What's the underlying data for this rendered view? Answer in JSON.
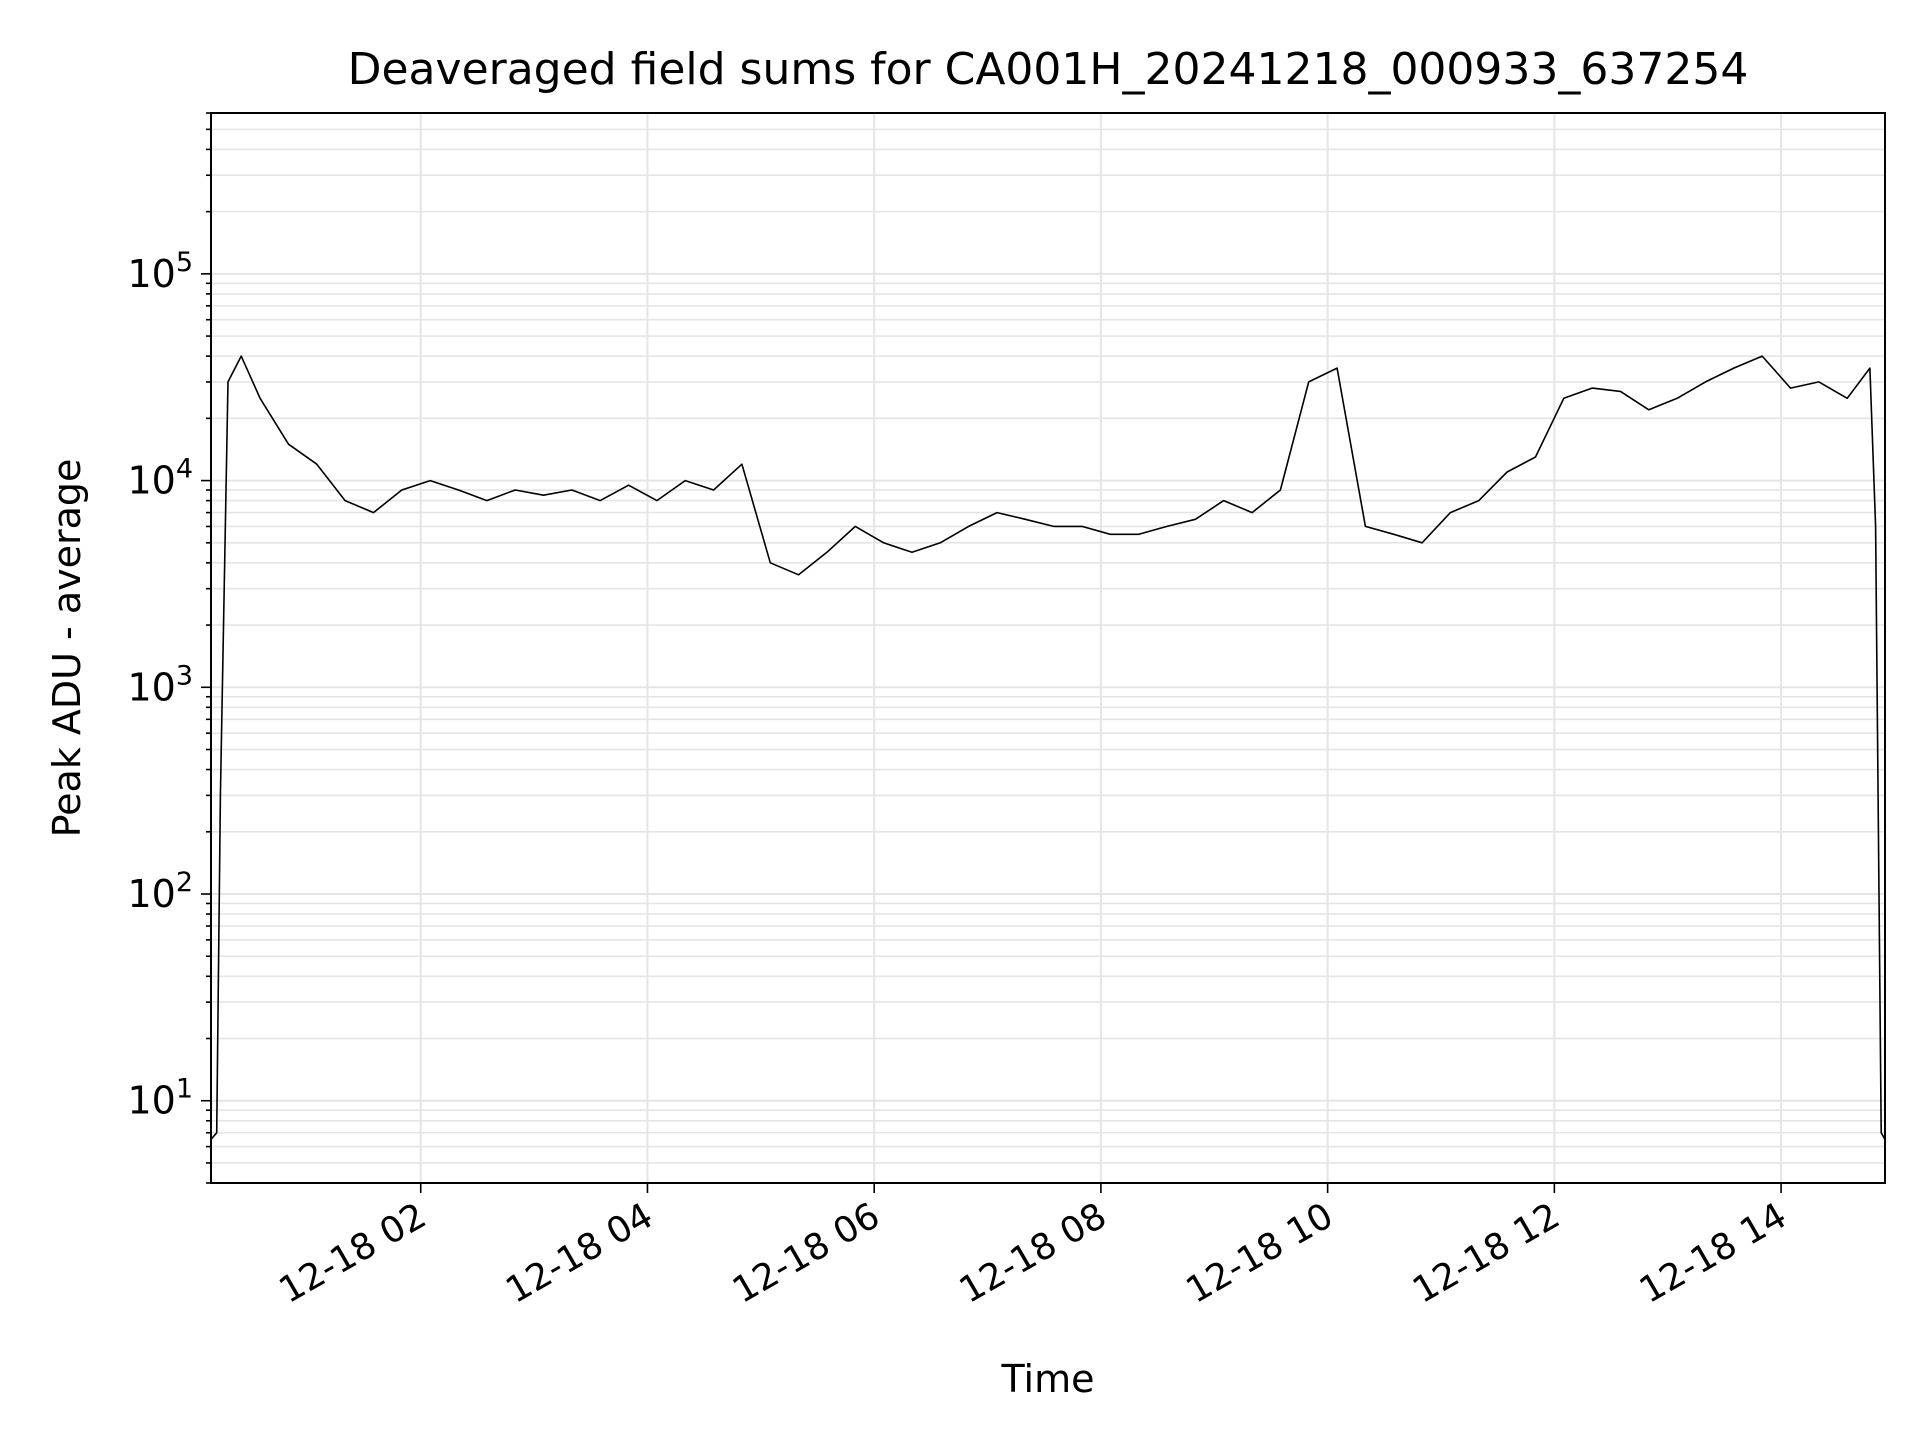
{
  "chart_data": {
    "type": "line",
    "title": "Deaveraged field sums for CA001H_20241218_000933_637254",
    "xlabel": "Time",
    "ylabel": "Peak ADU - average",
    "y_scale": "log",
    "ylim": [
      4,
      600000
    ],
    "xlim": [
      "2024-12-18 00:09",
      "2024-12-18 14:55"
    ],
    "grid": true,
    "line_color": "#000000",
    "grid_color": "#e5e5e5",
    "x_ticks": [
      {
        "label": "12-18 02",
        "t": "2024-12-18 02:00"
      },
      {
        "label": "12-18 04",
        "t": "2024-12-18 04:00"
      },
      {
        "label": "12-18 06",
        "t": "2024-12-18 06:00"
      },
      {
        "label": "12-18 08",
        "t": "2024-12-18 08:00"
      },
      {
        "label": "12-18 10",
        "t": "2024-12-18 10:00"
      },
      {
        "label": "12-18 12",
        "t": "2024-12-18 12:00"
      },
      {
        "label": "12-18 14",
        "t": "2024-12-18 14:00"
      }
    ],
    "y_ticks": [
      {
        "base": "10",
        "exp": "1",
        "value": 10
      },
      {
        "base": "10",
        "exp": "2",
        "value": 100
      },
      {
        "base": "10",
        "exp": "3",
        "value": 1000
      },
      {
        "base": "10",
        "exp": "4",
        "value": 10000
      },
      {
        "base": "10",
        "exp": "5",
        "value": 100000
      }
    ],
    "series": [
      {
        "x": [
          "2024-12-18 00:09",
          "2024-12-18 00:12",
          "2024-12-18 00:14",
          "2024-12-18 00:18",
          "2024-12-18 00:25",
          "2024-12-18 00:35",
          "2024-12-18 00:50",
          "2024-12-18 01:05",
          "2024-12-18 01:20",
          "2024-12-18 01:35",
          "2024-12-18 01:50",
          "2024-12-18 02:05",
          "2024-12-18 02:20",
          "2024-12-18 02:35",
          "2024-12-18 02:50",
          "2024-12-18 03:05",
          "2024-12-18 03:20",
          "2024-12-18 03:35",
          "2024-12-18 03:50",
          "2024-12-18 04:05",
          "2024-12-18 04:20",
          "2024-12-18 04:35",
          "2024-12-18 04:50",
          "2024-12-18 05:05",
          "2024-12-18 05:20",
          "2024-12-18 05:35",
          "2024-12-18 05:50",
          "2024-12-18 06:05",
          "2024-12-18 06:20",
          "2024-12-18 06:35",
          "2024-12-18 06:50",
          "2024-12-18 07:05",
          "2024-12-18 07:20",
          "2024-12-18 07:35",
          "2024-12-18 07:50",
          "2024-12-18 08:05",
          "2024-12-18 08:20",
          "2024-12-18 08:35",
          "2024-12-18 08:50",
          "2024-12-18 09:05",
          "2024-12-18 09:20",
          "2024-12-18 09:35",
          "2024-12-18 09:50",
          "2024-12-18 10:05",
          "2024-12-18 10:20",
          "2024-12-18 10:35",
          "2024-12-18 10:50",
          "2024-12-18 11:05",
          "2024-12-18 11:20",
          "2024-12-18 11:35",
          "2024-12-18 11:50",
          "2024-12-18 12:05",
          "2024-12-18 12:20",
          "2024-12-18 12:35",
          "2024-12-18 12:50",
          "2024-12-18 13:05",
          "2024-12-18 13:20",
          "2024-12-18 13:35",
          "2024-12-18 13:50",
          "2024-12-18 14:05",
          "2024-12-18 14:20",
          "2024-12-18 14:35",
          "2024-12-18 14:47",
          "2024-12-18 14:50",
          "2024-12-18 14:53",
          "2024-12-18 14:55"
        ],
        "y": [
          6.5,
          7,
          300,
          30000,
          40000,
          25000,
          15000,
          12000,
          8000,
          7000,
          9000,
          10000,
          9000,
          8000,
          9000,
          8500,
          9000,
          8000,
          9500,
          8000,
          10000,
          9000,
          12000,
          4000,
          3500,
          4500,
          6000,
          5000,
          4500,
          5000,
          6000,
          7000,
          6500,
          6000,
          6000,
          5500,
          5500,
          6000,
          6500,
          8000,
          7000,
          9000,
          30000,
          35000,
          6000,
          5500,
          5000,
          7000,
          8000,
          11000,
          13000,
          25000,
          28000,
          27000,
          22000,
          25000,
          30000,
          35000,
          40000,
          28000,
          30000,
          25000,
          35000,
          6000,
          7,
          6.5
        ]
      }
    ]
  }
}
